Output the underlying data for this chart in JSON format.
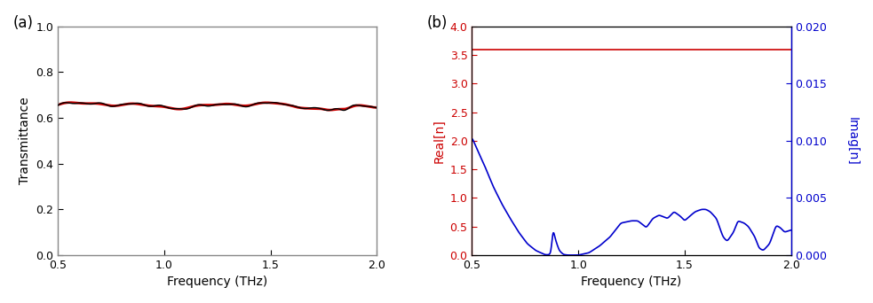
{
  "panel_a": {
    "label": "(a)",
    "xlabel": "Frequency (THz)",
    "ylabel": "Transmittance",
    "xlim": [
      0.5,
      2.0
    ],
    "ylim": [
      0.0,
      1.0
    ],
    "xticks": [
      0.5,
      1.0,
      1.5,
      2.0
    ],
    "yticks": [
      0.0,
      0.2,
      0.4,
      0.6,
      0.8,
      1.0
    ],
    "line_color_black": "#000000",
    "line_color_red": "#cc0000",
    "spine_color": "#888888"
  },
  "panel_b": {
    "label": "(b)",
    "xlabel": "Frequency (THz)",
    "ylabel_left": "Real[n]",
    "ylabel_right": "Imag[n]",
    "xlim": [
      0.5,
      2.0
    ],
    "ylim_left": [
      0.0,
      4.0
    ],
    "ylim_right": [
      0.0,
      0.02
    ],
    "xticks": [
      0.5,
      1.0,
      1.5,
      2.0
    ],
    "yticks_left": [
      0.0,
      0.5,
      1.0,
      1.5,
      2.0,
      2.5,
      3.0,
      3.5,
      4.0
    ],
    "yticks_right": [
      0.0,
      0.005,
      0.01,
      0.015,
      0.02
    ],
    "red_line_value": 3.6,
    "red_line_color": "#cc0000",
    "blue_line_color": "#0000cc",
    "spine_color": "#888888"
  },
  "figsize": [
    9.83,
    3.42
  ],
  "dpi": 100
}
